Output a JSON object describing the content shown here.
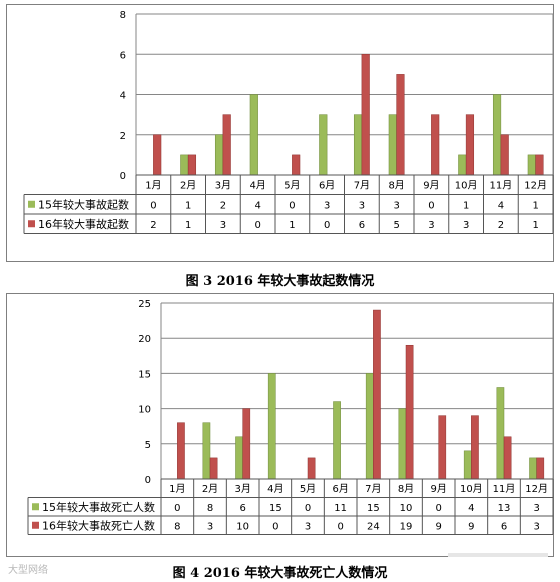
{
  "colors": {
    "series1": "#9bbb59",
    "series2": "#c0504d",
    "grid": "#868686",
    "axis": "#868686"
  },
  "captions": {
    "fig3": "图 3   2016 年较大事故起数情况",
    "fig4": "图 4   2016 年较大事故死亡人数情况"
  },
  "watermark": "大型网络",
  "chart_data": [
    {
      "type": "bar",
      "categories": [
        "1月",
        "2月",
        "3月",
        "4月",
        "5月",
        "6月",
        "7月",
        "8月",
        "9月",
        "10月",
        "11月",
        "12月"
      ],
      "series": [
        {
          "name": "15年较大事故起数",
          "values": [
            0,
            1,
            2,
            4,
            0,
            3,
            3,
            3,
            0,
            1,
            4,
            1
          ]
        },
        {
          "name": "16年较大事故起数",
          "values": [
            2,
            1,
            3,
            0,
            1,
            0,
            6,
            5,
            3,
            3,
            2,
            1
          ]
        }
      ],
      "ylim": [
        0,
        8
      ],
      "yticks": [
        0,
        2,
        4,
        6,
        8
      ],
      "grid": true,
      "legend": "table-below"
    },
    {
      "type": "bar",
      "categories": [
        "1月",
        "2月",
        "3月",
        "4月",
        "5月",
        "6月",
        "7月",
        "8月",
        "9月",
        "10月",
        "11月",
        "12月"
      ],
      "series": [
        {
          "name": "15年较大事故死亡人数",
          "values": [
            0,
            8,
            6,
            15,
            0,
            11,
            15,
            10,
            0,
            4,
            13,
            3
          ]
        },
        {
          "name": "16年较大事故死亡人数",
          "values": [
            8,
            3,
            10,
            0,
            3,
            0,
            24,
            19,
            9,
            9,
            6,
            3
          ]
        }
      ],
      "ylim": [
        0,
        25
      ],
      "yticks": [
        0,
        5,
        10,
        15,
        20,
        25
      ],
      "grid": true,
      "legend": "table-below"
    }
  ]
}
